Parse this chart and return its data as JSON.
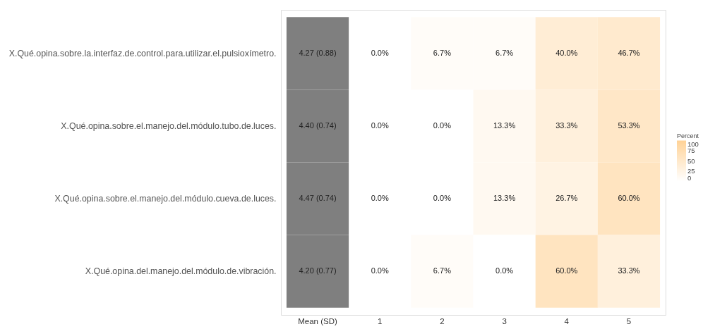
{
  "chart_data": {
    "type": "heatmap",
    "categories": [
      "Mean (SD)",
      "1",
      "2",
      "3",
      "4",
      "5"
    ],
    "y_categories": [
      "X.Qué.opina.sobre.la.interfaz.de.control.para.utilizar.el.pulsioxímetro.",
      "X.Qué.opina.sobre.el.manejo.del.módulo.tubo.de.luces.",
      "X.Qué.opina.sobre.el.manejo.del.módulo.cueva.de.luces.",
      "X.Qué.opina.del.manejo.del.módulo.de.vibración."
    ],
    "cells": [
      [
        null,
        0,
        6.7,
        6.7,
        40,
        46.7
      ],
      [
        null,
        0,
        0,
        13.3,
        33.3,
        53.3
      ],
      [
        null,
        0,
        0,
        13.3,
        26.7,
        60
      ],
      [
        null,
        0,
        6.7,
        0,
        60,
        33.3
      ]
    ],
    "cell_labels": [
      [
        "4.27 (0.88)",
        "0.0%",
        "6.7%",
        "6.7%",
        "40.0%",
        "46.7%"
      ],
      [
        "4.40 (0.74)",
        "0.0%",
        "0.0%",
        "13.3%",
        "33.3%",
        "53.3%"
      ],
      [
        "4.47 (0.74)",
        "0.0%",
        "0.0%",
        "13.3%",
        "26.7%",
        "60.0%"
      ],
      [
        "4.20 (0.77)",
        "0.0%",
        "6.7%",
        "0.0%",
        "60.0%",
        "33.3%"
      ]
    ],
    "legend_title": "Percent",
    "clim": [
      0,
      100
    ],
    "cticks": [
      0,
      25,
      50,
      75,
      100
    ]
  }
}
